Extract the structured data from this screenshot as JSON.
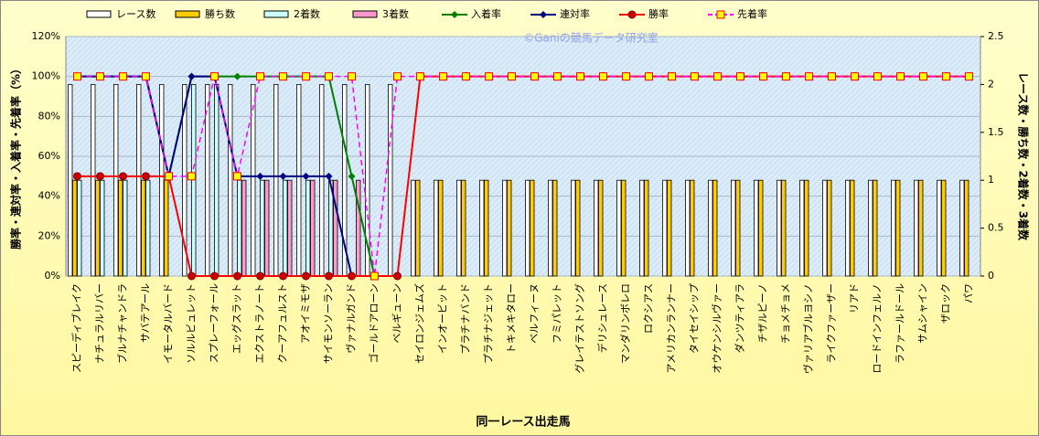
{
  "chart_data": {
    "type": "bar",
    "x_label": "同一レース出走馬",
    "y_label": "勝率・連対率・入着率・先着率（%）",
    "y2_label": "レース数・勝ち数・2着数・3着数",
    "annotation": "©Ganiの競馬データ研究室",
    "legend": "top",
    "grid": true,
    "categories": [
      "スピーディブレイク",
      "ナチュラルリバー",
      "ブルナチャンドラ",
      "サバテアール",
      "イモータルバード",
      "ソルルビュレット",
      "スプレーフォール",
      "エッグスラット",
      "エクストラノート",
      "クーアフュルスト",
      "アオイミモザ",
      "サイモンソーラン",
      "ヴァナルガンド",
      "ゴールドアローン",
      "ベルギューン",
      "セイロンジェムズ",
      "インオービット",
      "プラチナバンド",
      "プラチナジェット",
      "トキメキタロー",
      "ベルフィーヌ",
      "フミパレット",
      "グレイテストソング",
      "デリシュレース",
      "マンダリンボレロ",
      "ロクシアス",
      "アメリカンランナー",
      "タイセイシップ",
      "オウケンシルヴァー",
      "ダンツティアラ",
      "チザルピーノ",
      "チョメチョメ",
      "ヴァリアブルヨシノ",
      "ライクファーザー",
      "リアド",
      "ロードインフェルノ",
      "ラファールドール",
      "サムシャイン",
      "ザロック",
      "パワ"
    ],
    "ylim": [
      0,
      120
    ],
    "yticks": [
      {
        "value": 0,
        "label": "0%"
      },
      {
        "value": 20,
        "label": "20%"
      },
      {
        "value": 40,
        "label": "40%"
      },
      {
        "value": 60,
        "label": "60%"
      },
      {
        "value": 80,
        "label": "80%"
      },
      {
        "value": 100,
        "label": "100%"
      },
      {
        "value": 120,
        "label": "120%"
      }
    ],
    "y2lim": [
      0,
      2.5
    ],
    "y2ticks": [
      0,
      0.5,
      1,
      1.5,
      2,
      2.5
    ],
    "series": [
      {
        "name": "レース数",
        "type": "bar",
        "axis": "y2",
        "color": "#ffffff",
        "values": [
          2,
          2,
          2,
          2,
          2,
          2,
          2,
          2,
          2,
          2,
          2,
          2,
          2,
          2,
          2,
          1,
          1,
          1,
          1,
          1,
          1,
          1,
          1,
          1,
          1,
          1,
          1,
          1,
          1,
          1,
          1,
          1,
          1,
          1,
          1,
          1,
          1,
          1,
          1,
          1
        ]
      },
      {
        "name": "勝ち数",
        "type": "bar",
        "axis": "y2",
        "color": "#ffcc00",
        "values": [
          1,
          1,
          1,
          1,
          1,
          0,
          0,
          0,
          0,
          0,
          0,
          0,
          0,
          0,
          0,
          1,
          1,
          1,
          1,
          1,
          1,
          1,
          1,
          1,
          1,
          1,
          1,
          1,
          1,
          1,
          1,
          1,
          1,
          1,
          1,
          1,
          1,
          1,
          1,
          1
        ]
      },
      {
        "name": "2着数",
        "type": "bar",
        "axis": "y2",
        "color": "#ccffff",
        "values": [
          1,
          1,
          1,
          1,
          0,
          2,
          2,
          1,
          1,
          1,
          1,
          1,
          0,
          0,
          0,
          0,
          0,
          0,
          0,
          0,
          0,
          0,
          0,
          0,
          0,
          0,
          0,
          0,
          0,
          0,
          0,
          0,
          0,
          0,
          0,
          0,
          0,
          0,
          0,
          0
        ]
      },
      {
        "name": "3着数",
        "type": "bar",
        "axis": "y2",
        "color": "#ff99cc",
        "values": [
          0,
          0,
          0,
          0,
          0,
          0,
          0,
          1,
          1,
          1,
          1,
          1,
          1,
          0,
          0,
          0,
          0,
          0,
          0,
          0,
          0,
          0,
          0,
          0,
          0,
          0,
          0,
          0,
          0,
          0,
          0,
          0,
          0,
          0,
          0,
          0,
          0,
          0,
          0,
          0
        ]
      },
      {
        "name": "入着率",
        "type": "line",
        "color": "#008000",
        "marker": "diamond",
        "values": [
          100,
          100,
          100,
          100,
          50,
          100,
          100,
          100,
          100,
          100,
          100,
          100,
          50,
          0,
          null,
          null,
          null,
          null,
          null,
          null,
          null,
          null,
          null,
          null,
          null,
          null,
          null,
          null,
          null,
          null,
          null,
          null,
          null,
          null,
          null,
          null,
          null,
          null,
          null,
          null
        ]
      },
      {
        "name": "連対率",
        "type": "line",
        "color": "#000080",
        "marker": "diamond",
        "values": [
          100,
          100,
          100,
          100,
          50,
          100,
          100,
          50,
          50,
          50,
          50,
          50,
          0,
          null,
          null,
          null,
          null,
          null,
          null,
          null,
          null,
          null,
          null,
          null,
          null,
          null,
          null,
          null,
          null,
          null,
          null,
          null,
          null,
          null,
          null,
          null,
          null,
          null,
          null,
          null
        ]
      },
      {
        "name": "勝率",
        "type": "line",
        "color": "#ff0000",
        "marker": "circle",
        "marker_color": "#cc0000",
        "values": [
          50,
          50,
          50,
          50,
          50,
          0,
          0,
          0,
          0,
          0,
          0,
          0,
          0,
          0,
          0,
          100,
          100,
          100,
          100,
          100,
          100,
          100,
          100,
          100,
          100,
          100,
          100,
          100,
          100,
          100,
          100,
          100,
          100,
          100,
          100,
          100,
          100,
          100,
          100,
          100
        ]
      },
      {
        "name": "先着率",
        "type": "line",
        "color": "#ff00ff",
        "dashed": true,
        "marker": "square",
        "marker_color": "#ffff00",
        "values": [
          100,
          100,
          100,
          100,
          50,
          50,
          100,
          50,
          100,
          100,
          100,
          100,
          100,
          0,
          100,
          100,
          100,
          100,
          100,
          100,
          100,
          100,
          100,
          100,
          100,
          100,
          100,
          100,
          100,
          100,
          100,
          100,
          100,
          100,
          100,
          100,
          100,
          100,
          100,
          100
        ]
      }
    ]
  }
}
